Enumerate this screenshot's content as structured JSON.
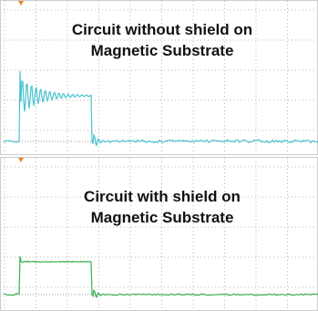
{
  "panels": [
    {
      "title_lines": [
        "Circuit without shield on",
        "Magnetic Substrate"
      ]
    },
    {
      "title_lines": [
        "Circuit with shield on",
        "Magnetic Substrate"
      ]
    }
  ]
}
